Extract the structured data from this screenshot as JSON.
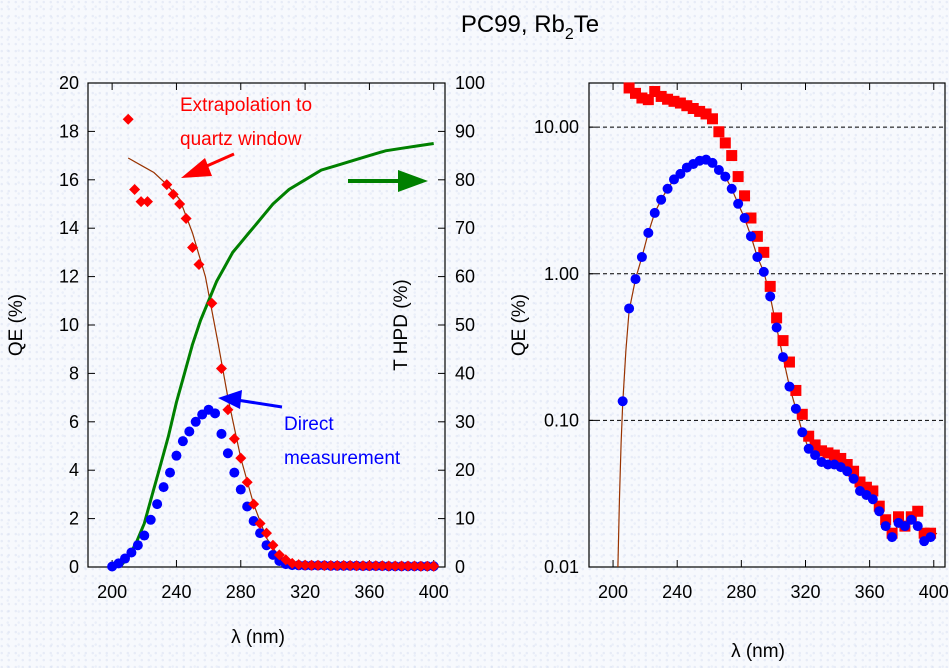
{
  "figure_title": {
    "main": "PC99, Rb",
    "sub": "2",
    "tail": "Te"
  },
  "colors": {
    "red": "#ff0000",
    "blue": "#0000ff",
    "green": "#008000",
    "brown": "#993300",
    "text": "#000000"
  },
  "annotations": {
    "extrapolation_line1": "Extrapolation to",
    "extrapolation_line2": "quartz window",
    "direct_line1": "Direct",
    "direct_line2": "measurement"
  },
  "chart_data": [
    {
      "type": "scatter",
      "xlabel": "λ (nm)",
      "ylabel": "QE (%)",
      "y2label": "T HPD (%)",
      "xlim": [
        185,
        407
      ],
      "ylim": [
        0,
        20
      ],
      "y2lim": [
        0,
        100
      ],
      "x_ticks": [
        "200",
        "240",
        "280",
        "320",
        "360",
        "400"
      ],
      "y_ticks": [
        "0",
        "2",
        "4",
        "6",
        "8",
        "10",
        "12",
        "14",
        "16",
        "18",
        "20"
      ],
      "y2_ticks": [
        "0",
        "10",
        "20",
        "30",
        "40",
        "50",
        "60",
        "70",
        "80",
        "90",
        "100"
      ],
      "grid": false,
      "series": [
        {
          "color": "#0000ff",
          "marker": "circle",
          "x": [
            200,
            204,
            208,
            212,
            216,
            220,
            224,
            228,
            232,
            236,
            240,
            244,
            248,
            252,
            256,
            260,
            264,
            268,
            272,
            276,
            280,
            284,
            288,
            292,
            296,
            300,
            304,
            308,
            312,
            316,
            320,
            324,
            328,
            332,
            336,
            340,
            344,
            348,
            352,
            356,
            360,
            364,
            368,
            372,
            376,
            380,
            384,
            388,
            392,
            396,
            400
          ],
          "y": [
            0.02,
            0.15,
            0.35,
            0.6,
            0.9,
            1.3,
            1.95,
            2.6,
            3.3,
            3.9,
            4.6,
            5.2,
            5.6,
            6.0,
            6.3,
            6.5,
            6.35,
            5.5,
            4.7,
            3.9,
            3.2,
            2.5,
            1.9,
            1.4,
            0.9,
            0.5,
            0.25,
            0.12,
            0.08,
            0.07,
            0.06,
            0.06,
            0.06,
            0.06,
            0.05,
            0.05,
            0.05,
            0.05,
            0.05,
            0.04,
            0.04,
            0.04,
            0.04,
            0.03,
            0.03,
            0.03,
            0.03,
            0.03,
            0.03,
            0.03,
            0.03
          ]
        },
        {
          "color": "#ff0000",
          "marker": "diamond",
          "x": [
            210,
            214,
            218,
            222,
            234,
            238,
            242,
            246,
            250,
            254,
            262,
            268,
            272,
            276,
            280,
            284,
            288,
            292,
            296,
            300,
            304,
            308,
            312,
            316,
            320,
            324,
            328,
            332,
            336,
            340,
            344,
            348,
            352,
            356,
            360,
            364,
            368,
            372,
            376,
            380,
            384,
            388,
            392,
            396,
            400
          ],
          "y": [
            18.5,
            15.6,
            15.1,
            15.1,
            15.8,
            15.4,
            15.0,
            14.4,
            13.2,
            12.5,
            10.9,
            8.2,
            6.5,
            5.3,
            4.5,
            3.5,
            2.6,
            1.8,
            1.4,
            0.9,
            0.5,
            0.3,
            0.15,
            0.1,
            0.08,
            0.07,
            0.07,
            0.06,
            0.06,
            0.06,
            0.06,
            0.06,
            0.05,
            0.05,
            0.05,
            0.05,
            0.05,
            0.04,
            0.04,
            0.04,
            0.04,
            0.04,
            0.03,
            0.03,
            0.03
          ]
        },
        {
          "color": "#993300",
          "marker": "line",
          "x": [
            210,
            218,
            226,
            234,
            242,
            250,
            258,
            266,
            272,
            280,
            288,
            296,
            304,
            312,
            320,
            360,
            400
          ],
          "y": [
            16.9,
            16.6,
            16.3,
            15.8,
            15.2,
            13.8,
            12.0,
            9.2,
            7.0,
            4.5,
            2.6,
            1.2,
            0.4,
            0.12,
            0.07,
            0.05,
            0.04
          ]
        },
        {
          "color": "#008000",
          "marker": "line",
          "axis": "y2",
          "x": [
            206,
            210,
            215,
            220,
            225,
            230,
            235,
            240,
            245,
            250,
            255,
            260,
            265,
            270,
            275,
            280,
            285,
            290,
            295,
            300,
            310,
            320,
            330,
            340,
            350,
            360,
            370,
            380,
            390,
            400
          ],
          "y": [
            0.5,
            2,
            5,
            9,
            15,
            21,
            27,
            34,
            40,
            46,
            51,
            55,
            59,
            62,
            65,
            67,
            69,
            71,
            73,
            75,
            78,
            80,
            82,
            83,
            84,
            85,
            86,
            86.5,
            87,
            87.5
          ]
        }
      ]
    },
    {
      "type": "scatter",
      "xlabel": "λ (nm)",
      "ylabel": "QE (%)",
      "xlim": [
        185,
        407
      ],
      "ylim": [
        0.01,
        20
      ],
      "y_scale": "log",
      "x_ticks": [
        "200",
        "240",
        "280",
        "320",
        "360",
        "400"
      ],
      "y_ticks": [
        "0.01",
        "0.10",
        "1.00",
        "10.00"
      ],
      "grid": "dashed horizontal at 0.1, 1, 10",
      "series": [
        {
          "color": "#ff0000",
          "marker": "square",
          "x": [
            210,
            214,
            218,
            222,
            226,
            230,
            234,
            238,
            242,
            246,
            250,
            254,
            258,
            262,
            266,
            270,
            274,
            278,
            282,
            286,
            290,
            294,
            298,
            302,
            306,
            310,
            314,
            318,
            322,
            326,
            330,
            334,
            338,
            342,
            346,
            350,
            354,
            358,
            362,
            366,
            370,
            374,
            378,
            382,
            386,
            390,
            394,
            398
          ],
          "y": [
            18.5,
            17,
            15.8,
            15.4,
            17.5,
            16.2,
            15.5,
            15.0,
            14.6,
            14.0,
            13.4,
            12.8,
            12.3,
            11.4,
            9.3,
            7.8,
            6.4,
            4.6,
            3.4,
            2.4,
            1.8,
            1.4,
            0.82,
            0.5,
            0.35,
            0.25,
            0.16,
            0.11,
            0.078,
            0.068,
            0.062,
            0.06,
            0.058,
            0.055,
            0.05,
            0.045,
            0.038,
            0.035,
            0.033,
            0.026,
            0.021,
            0.017,
            0.022,
            0.019,
            0.022,
            0.024,
            0.017,
            0.017
          ]
        },
        {
          "color": "#0000ff",
          "marker": "circle",
          "x": [
            206,
            210,
            214,
            218,
            222,
            226,
            230,
            234,
            238,
            242,
            246,
            250,
            254,
            258,
            262,
            266,
            270,
            274,
            278,
            282,
            286,
            290,
            294,
            298,
            302,
            306,
            310,
            314,
            318,
            322,
            326,
            330,
            334,
            338,
            342,
            346,
            350,
            354,
            358,
            362,
            366,
            370,
            374,
            378,
            382,
            386,
            390,
            394,
            398
          ],
          "y": [
            0.135,
            0.58,
            0.92,
            1.3,
            1.9,
            2.6,
            3.2,
            3.8,
            4.4,
            4.8,
            5.3,
            5.6,
            5.9,
            6.0,
            5.7,
            5.1,
            4.6,
            3.8,
            3.0,
            2.4,
            1.8,
            1.3,
            1.03,
            0.7,
            0.43,
            0.27,
            0.17,
            0.12,
            0.083,
            0.064,
            0.058,
            0.052,
            0.05,
            0.05,
            0.048,
            0.045,
            0.04,
            0.033,
            0.031,
            0.029,
            0.024,
            0.019,
            0.016,
            0.02,
            0.019,
            0.021,
            0.019,
            0.015,
            0.016
          ]
        },
        {
          "color": "#993300",
          "marker": "line",
          "x": [
            203,
            204,
            205,
            206,
            208,
            210,
            214,
            218,
            222,
            226,
            230,
            234,
            238,
            242,
            246,
            250,
            254,
            258,
            262,
            266,
            270,
            274,
            278,
            282,
            286,
            290,
            294,
            298,
            302,
            306,
            310,
            314,
            318,
            322,
            326,
            330,
            334,
            338,
            342,
            346,
            350,
            354,
            358,
            362,
            366,
            370,
            374,
            378,
            382,
            386,
            390,
            394,
            398,
            402
          ],
          "y": [
            0.01,
            0.03,
            0.07,
            0.13,
            0.3,
            0.56,
            0.92,
            1.3,
            1.9,
            2.6,
            3.2,
            3.8,
            4.4,
            4.8,
            5.3,
            5.6,
            5.9,
            6.0,
            5.7,
            5.1,
            4.6,
            3.8,
            3.0,
            2.4,
            1.8,
            1.3,
            1.03,
            0.7,
            0.43,
            0.27,
            0.17,
            0.12,
            0.083,
            0.064,
            0.058,
            0.052,
            0.05,
            0.05,
            0.048,
            0.045,
            0.04,
            0.033,
            0.031,
            0.029,
            0.024,
            0.019,
            0.016,
            0.02,
            0.019,
            0.021,
            0.019,
            0.015,
            0.016,
            0.017
          ]
        }
      ]
    }
  ]
}
